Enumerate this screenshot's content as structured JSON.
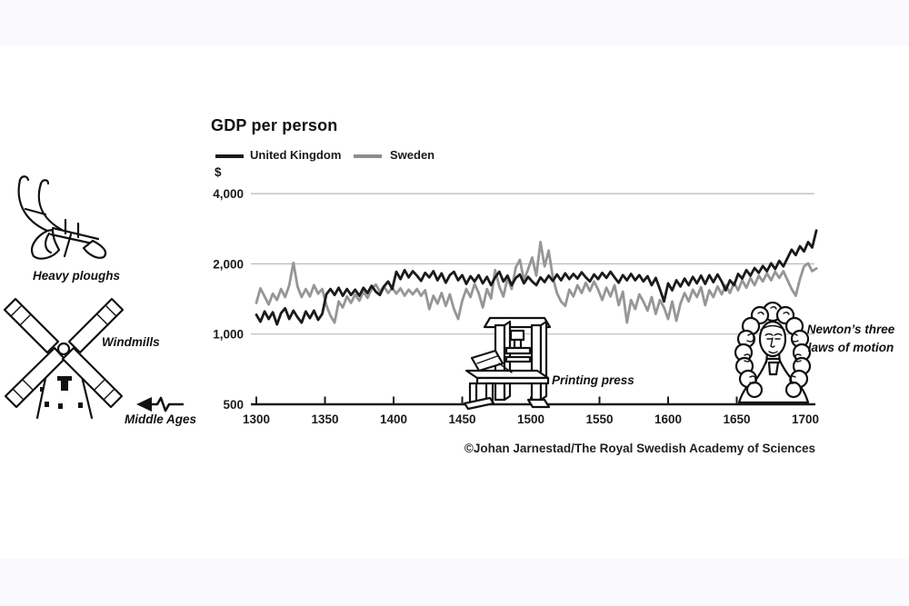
{
  "page": {
    "background_color": "#f9f9fe",
    "canvas_color": "#ffffff",
    "credit": "©Johan Jarnestad/The Royal Swedish Academy of Sciences"
  },
  "chart": {
    "title": "GDP per person",
    "currency_label": "$",
    "legend": [
      {
        "label": "United Kingdom",
        "color": "#1a1a1a"
      },
      {
        "label": "Sweden",
        "color": "#8c8c8c"
      }
    ]
  },
  "annotations": {
    "heavy_ploughs": "Heavy ploughs",
    "windmills": "Windmills",
    "middle_ages": "Middle Ages",
    "printing_press": "Printing press",
    "newton": "Newton’s three laws of motion"
  },
  "chart_data": {
    "type": "line",
    "title": "GDP per person",
    "ylabel": "$",
    "y_scale": "log",
    "grid": true,
    "legend_position": "top-left",
    "x_range": [
      1300,
      1708
    ],
    "y_range": [
      500,
      4400
    ],
    "x_ticks": [
      1300,
      1350,
      1400,
      1450,
      1500,
      1550,
      1600,
      1650,
      1700
    ],
    "y_ticks": [
      {
        "value": 4000,
        "label": "4,000",
        "grid": true
      },
      {
        "value": 2000,
        "label": "2,000",
        "grid": true
      },
      {
        "value": 1000,
        "label": "1,000",
        "grid": true
      },
      {
        "value": 500,
        "label": "500",
        "grid": false
      }
    ],
    "series": [
      {
        "name": "United Kingdom",
        "color": "#1a1a1a",
        "x_start": 1300,
        "x_step": 3,
        "values": [
          1210,
          1130,
          1250,
          1160,
          1240,
          1100,
          1230,
          1290,
          1160,
          1260,
          1180,
          1120,
          1250,
          1170,
          1260,
          1150,
          1220,
          1480,
          1560,
          1470,
          1580,
          1460,
          1560,
          1470,
          1550,
          1460,
          1580,
          1500,
          1610,
          1520,
          1470,
          1600,
          1680,
          1560,
          1850,
          1720,
          1880,
          1750,
          1860,
          1780,
          1690,
          1830,
          1750,
          1860,
          1700,
          1820,
          1660,
          1790,
          1850,
          1700,
          1790,
          1640,
          1770,
          1680,
          1790,
          1650,
          1760,
          1620,
          1750,
          1850,
          1680,
          1780,
          1620,
          1740,
          1800,
          1650,
          1760,
          1680,
          1620,
          1750,
          1670,
          1780,
          1690,
          1800,
          1700,
          1820,
          1720,
          1810,
          1730,
          1840,
          1750,
          1680,
          1800,
          1720,
          1830,
          1740,
          1850,
          1750,
          1660,
          1790,
          1700,
          1810,
          1700,
          1790,
          1680,
          1770,
          1620,
          1740,
          1560,
          1380,
          1650,
          1540,
          1700,
          1600,
          1730,
          1620,
          1760,
          1650,
          1780,
          1640,
          1790,
          1670,
          1800,
          1680,
          1540,
          1700,
          1620,
          1810,
          1730,
          1880,
          1780,
          1920,
          1830,
          1960,
          1860,
          2010,
          1900,
          2060,
          1950,
          2120,
          2300,
          2180,
          2380,
          2260,
          2480,
          2350,
          2780
        ]
      },
      {
        "name": "Sweden",
        "color": "#969696",
        "x_start": 1300,
        "x_step": 3,
        "values": [
          1360,
          1570,
          1450,
          1340,
          1490,
          1400,
          1560,
          1440,
          1620,
          2020,
          1600,
          1440,
          1560,
          1450,
          1620,
          1490,
          1560,
          1330,
          1200,
          1120,
          1380,
          1300,
          1450,
          1360,
          1480,
          1390,
          1520,
          1430,
          1560,
          1630,
          1520,
          1600,
          1500,
          1580,
          1490,
          1570,
          1460,
          1550,
          1480,
          1560,
          1460,
          1540,
          1280,
          1460,
          1350,
          1500,
          1320,
          1480,
          1280,
          1160,
          1390,
          1560,
          1440,
          1640,
          1500,
          1300,
          1560,
          1420,
          1880,
          1600,
          1450,
          1740,
          1560,
          1930,
          2080,
          1700,
          1900,
          2130,
          1780,
          2480,
          1950,
          2280,
          1750,
          1500,
          1380,
          1320,
          1550,
          1450,
          1620,
          1500,
          1660,
          1530,
          1680,
          1550,
          1400,
          1580,
          1450,
          1620,
          1330,
          1520,
          1120,
          1400,
          1280,
          1480,
          1380,
          1260,
          1440,
          1220,
          1400,
          1300,
          1160,
          1380,
          1140,
          1350,
          1500,
          1380,
          1550,
          1440,
          1590,
          1330,
          1540,
          1440,
          1600,
          1480,
          1620,
          1500,
          1660,
          1540,
          1700,
          1580,
          1740,
          1620,
          1780,
          1680,
          1820,
          1700,
          1850,
          1740,
          1860,
          1700,
          1560,
          1460,
          1720,
          1950,
          2010,
          1860,
          1910
        ]
      }
    ]
  }
}
